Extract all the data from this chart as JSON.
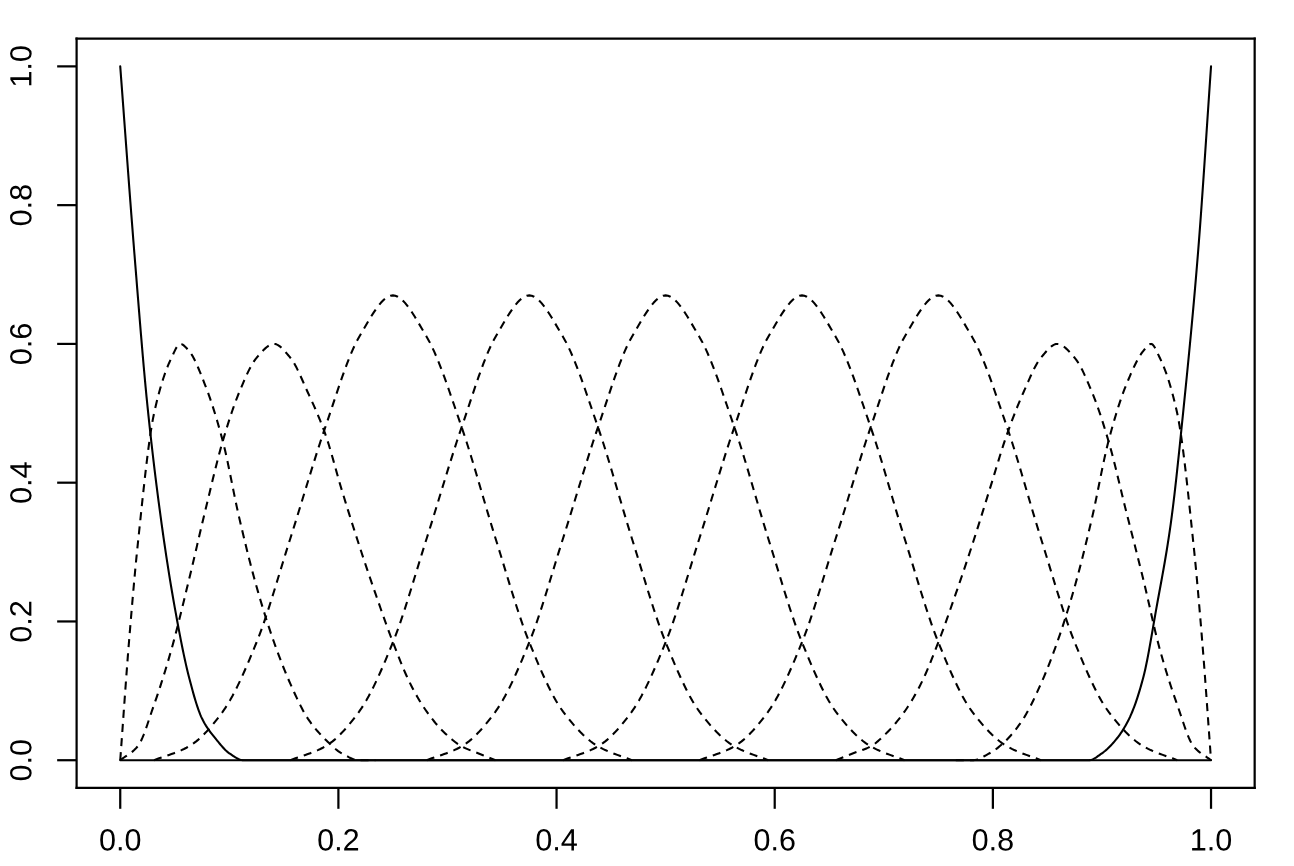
{
  "chart_data": {
    "type": "line",
    "xlim": [
      -0.04,
      1.04
    ],
    "ylim": [
      -0.04,
      1.04
    ],
    "xticks": [
      {
        "value": 0,
        "label": "0.0"
      },
      0.2,
      0.4,
      0.6,
      0.8,
      {
        "value": 1,
        "label": "1.0"
      }
    ],
    "yticks": [
      {
        "value": 0,
        "label": "0.0"
      },
      0.2,
      0.4,
      0.6,
      0.8,
      {
        "value": 1,
        "label": "1.0"
      }
    ],
    "series": [
      {
        "color": "#000000",
        "line_style": "solid",
        "x": [
          0,
          0.013,
          0.025,
          0.038,
          0.05,
          0.063,
          0.075,
          0.088,
          0.1,
          0.113,
          0.125,
          1
        ],
        "values": [
          1,
          0.73,
          0.51,
          0.34,
          0.22,
          0.12,
          0.06,
          0.03,
          0.01,
          0.0,
          0,
          0
        ]
      },
      {
        "color": "#000000",
        "line_style": "dashed",
        "x": [
          0,
          0.008,
          0.016,
          0.031,
          0.047,
          0.055,
          0.063,
          0.078,
          0.094,
          0.109,
          0.125,
          0.141,
          0.156,
          0.172,
          0.188,
          0.203,
          0.219,
          0.234
        ],
        "values": [
          0,
          0.17,
          0.31,
          0.5,
          0.58,
          0.6,
          0.59,
          0.54,
          0.46,
          0.35,
          0.25,
          0.17,
          0.11,
          0.06,
          0.03,
          0.01,
          0.0,
          0.0
        ]
      },
      {
        "color": "#000000",
        "line_style": "dashed",
        "x": [
          0,
          0.016,
          0.031,
          0.047,
          0.063,
          0.078,
          0.094,
          0.109,
          0.125,
          0.141,
          0.156,
          0.172,
          0.188,
          0.203,
          0.219,
          0.234,
          0.25,
          0.266,
          0.281,
          0.297,
          0.313,
          0.328,
          0.344
        ],
        "values": [
          0,
          0.02,
          0.08,
          0.16,
          0.26,
          0.36,
          0.46,
          0.53,
          0.58,
          0.6,
          0.58,
          0.53,
          0.47,
          0.39,
          0.31,
          0.24,
          0.17,
          0.11,
          0.07,
          0.04,
          0.02,
          0.01,
          0.0
        ]
      },
      {
        "color": "#000000",
        "line_style": "dashed",
        "x": [
          0.031,
          0.063,
          0.094,
          0.125,
          0.156,
          0.188,
          0.219,
          0.25,
          0.281,
          0.313,
          0.344,
          0.375,
          0.406,
          0.438,
          0.469
        ],
        "values": [
          0.0,
          0.02,
          0.07,
          0.17,
          0.32,
          0.48,
          0.61,
          0.67,
          0.61,
          0.48,
          0.32,
          0.17,
          0.07,
          0.02,
          0.0
        ]
      },
      {
        "color": "#000000",
        "line_style": "dashed",
        "x": [
          0.156,
          0.188,
          0.219,
          0.25,
          0.281,
          0.313,
          0.344,
          0.375,
          0.406,
          0.438,
          0.469,
          0.5,
          0.531,
          0.563,
          0.594
        ],
        "values": [
          0.0,
          0.02,
          0.07,
          0.17,
          0.32,
          0.48,
          0.61,
          0.67,
          0.61,
          0.48,
          0.32,
          0.17,
          0.07,
          0.02,
          0.0
        ]
      },
      {
        "color": "#000000",
        "line_style": "dashed",
        "x": [
          0.281,
          0.313,
          0.344,
          0.375,
          0.406,
          0.438,
          0.469,
          0.5,
          0.531,
          0.563,
          0.594,
          0.625,
          0.656,
          0.688,
          0.719
        ],
        "values": [
          0.0,
          0.02,
          0.07,
          0.17,
          0.32,
          0.48,
          0.61,
          0.67,
          0.61,
          0.48,
          0.32,
          0.17,
          0.07,
          0.02,
          0.0
        ]
      },
      {
        "color": "#000000",
        "line_style": "dashed",
        "x": [
          0.406,
          0.438,
          0.469,
          0.5,
          0.531,
          0.563,
          0.594,
          0.625,
          0.656,
          0.688,
          0.719,
          0.75,
          0.781,
          0.813,
          0.844
        ],
        "values": [
          0.0,
          0.02,
          0.07,
          0.17,
          0.32,
          0.48,
          0.61,
          0.67,
          0.61,
          0.48,
          0.32,
          0.17,
          0.07,
          0.02,
          0.0
        ]
      },
      {
        "color": "#000000",
        "line_style": "dashed",
        "x": [
          0.531,
          0.563,
          0.594,
          0.625,
          0.656,
          0.688,
          0.719,
          0.75,
          0.781,
          0.813,
          0.844,
          0.875,
          0.906,
          0.938,
          0.969
        ],
        "values": [
          0.0,
          0.02,
          0.07,
          0.17,
          0.32,
          0.48,
          0.61,
          0.67,
          0.61,
          0.48,
          0.32,
          0.17,
          0.07,
          0.02,
          0.0
        ]
      },
      {
        "color": "#000000",
        "line_style": "dashed",
        "x": [
          0.656,
          0.672,
          0.688,
          0.703,
          0.719,
          0.734,
          0.75,
          0.766,
          0.781,
          0.797,
          0.813,
          0.828,
          0.844,
          0.859,
          0.875,
          0.891,
          0.906,
          0.922,
          0.938,
          0.953,
          0.969,
          0.984,
          1
        ],
        "values": [
          0.0,
          0.01,
          0.02,
          0.04,
          0.07,
          0.11,
          0.17,
          0.24,
          0.31,
          0.39,
          0.47,
          0.53,
          0.58,
          0.6,
          0.58,
          0.53,
          0.46,
          0.36,
          0.26,
          0.16,
          0.08,
          0.02,
          0
        ]
      },
      {
        "color": "#000000",
        "line_style": "dashed",
        "x": [
          0.766,
          0.781,
          0.797,
          0.813,
          0.828,
          0.844,
          0.859,
          0.875,
          0.891,
          0.906,
          0.922,
          0.938,
          0.945,
          0.953,
          0.969,
          0.984,
          0.992,
          1
        ],
        "values": [
          0.0,
          0.0,
          0.01,
          0.03,
          0.06,
          0.11,
          0.17,
          0.25,
          0.35,
          0.46,
          0.54,
          0.59,
          0.6,
          0.58,
          0.5,
          0.31,
          0.17,
          0
        ]
      },
      {
        "color": "#000000",
        "line_style": "solid",
        "x": [
          0,
          0.875,
          0.888,
          0.9,
          0.913,
          0.925,
          0.938,
          0.95,
          0.963,
          0.975,
          0.988,
          1
        ],
        "values": [
          0,
          0,
          0.0,
          0.01,
          0.03,
          0.06,
          0.12,
          0.22,
          0.34,
          0.51,
          0.73,
          1
        ]
      }
    ]
  }
}
